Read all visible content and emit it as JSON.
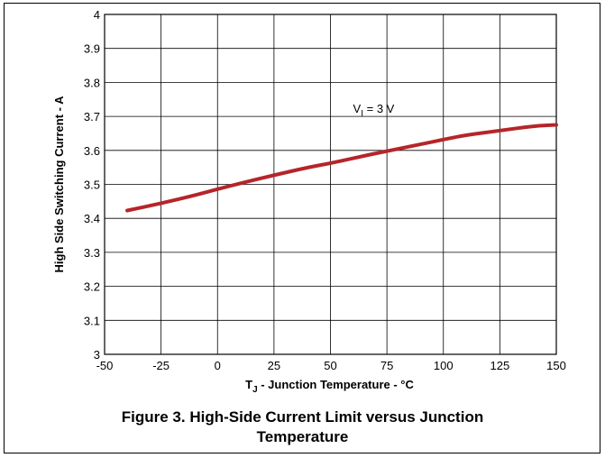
{
  "chart_data": {
    "type": "line",
    "xlabel_main": "T",
    "xlabel_sub": "J",
    "xlabel_rest": " - Junction Temperature - °C",
    "ylabel": "High Side Switching Current - A",
    "xlim": [
      -50,
      150
    ],
    "ylim": [
      3,
      4
    ],
    "x_ticks": [
      "-50",
      "-25",
      "0",
      "25",
      "50",
      "75",
      "100",
      "125",
      "150"
    ],
    "y_ticks": [
      "3",
      "3.1",
      "3.2",
      "3.3",
      "3.4",
      "3.5",
      "3.6",
      "3.7",
      "3.8",
      "3.9",
      "4"
    ],
    "grid": true,
    "series": [
      {
        "x": [
          -40,
          -25,
          -10,
          0,
          10,
          25,
          40,
          50,
          60,
          75,
          90,
          100,
          110,
          125,
          140,
          150
        ],
        "y": [
          3.423,
          3.444,
          3.468,
          3.486,
          3.503,
          3.527,
          3.55,
          3.562,
          3.577,
          3.598,
          3.618,
          3.632,
          3.645,
          3.658,
          3.672,
          3.675
        ],
        "color": "#b5252a"
      }
    ],
    "annotation": {
      "main": "V",
      "sub": "I",
      "rest": " = 3 V",
      "x": 60,
      "y": 3.724
    }
  },
  "caption": {
    "line1": "Figure 3. High-Side Current Limit versus Junction",
    "line2": "Temperature"
  }
}
